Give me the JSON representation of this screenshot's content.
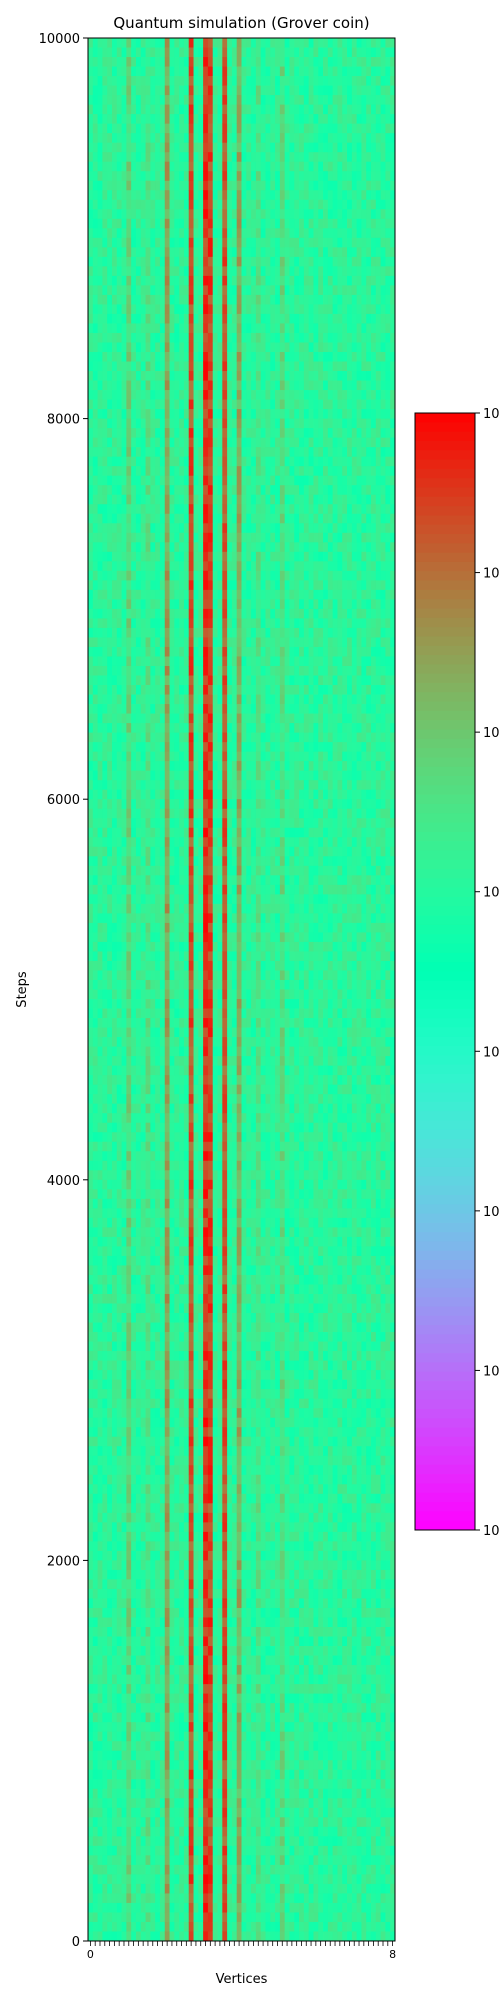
{
  "chart_data": {
    "type": "heatmap",
    "title": "Quantum simulation (Grover coin)",
    "xlabel": "Vertices",
    "ylabel": "Steps",
    "ylim": [
      0,
      10000
    ],
    "y_ticks": [
      0,
      2000,
      4000,
      6000,
      8000,
      10000
    ],
    "y_tick_labels": [
      "0",
      "2000",
      "4000",
      "6000",
      "8000",
      "10000"
    ],
    "x_tick_labels_visible": "0 …8 (crowded, overlapping labels)",
    "x_tick_first_label": "0",
    "x_tick_last_label": "8",
    "n_vertices": 64,
    "colormap": "rainbow",
    "colorbar": {
      "scale": "log",
      "tick_labels": [
        "10",
        "10",
        "10",
        "10",
        "10",
        "10",
        "10",
        "10"
      ]
    },
    "background_level": 0.58,
    "noise_amplitude": 0.06,
    "hot_columns": [
      {
        "vertex": 21,
        "level": 0.96
      },
      {
        "vertex": 24,
        "level": 1.0
      },
      {
        "vertex": 25,
        "level": 0.98
      },
      {
        "vertex": 28,
        "level": 0.95
      },
      {
        "vertex": 16,
        "level": 0.78
      },
      {
        "vertex": 31,
        "level": 0.76
      },
      {
        "vertex": 8,
        "level": 0.68
      },
      {
        "vertex": 40,
        "level": 0.66
      },
      {
        "vertex": 12,
        "level": 0.64
      },
      {
        "vertex": 35,
        "level": 0.64
      }
    ],
    "grid": false
  }
}
